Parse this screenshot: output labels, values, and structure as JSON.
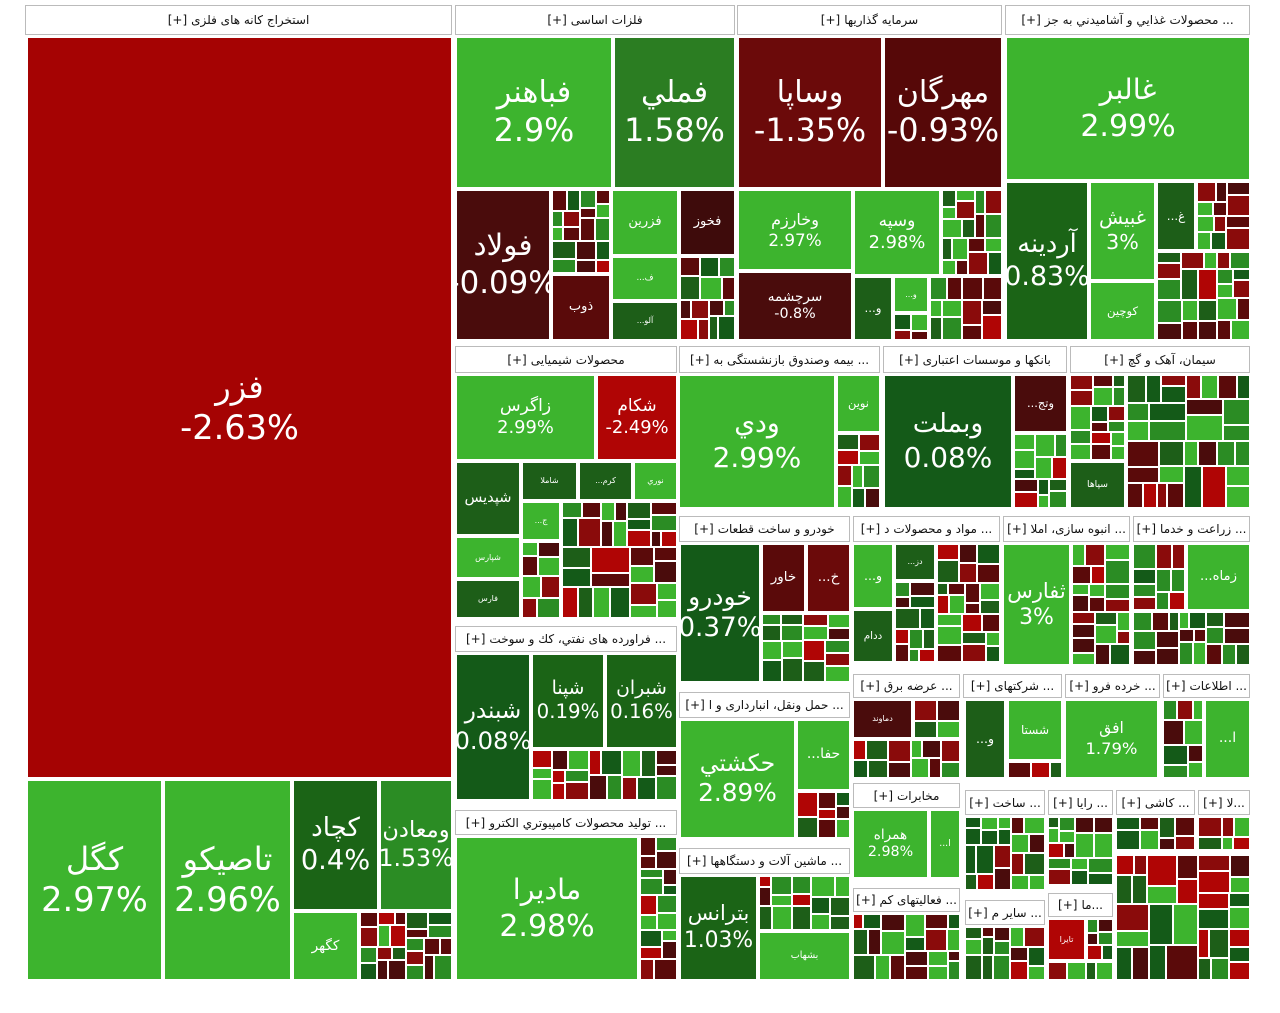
{
  "expand": "[+]",
  "sectors": [
    {
      "title": "استخراج کانه های فلزی",
      "tiles": [
        {
          "name": "فزر",
          "change": "-2.63%",
          "color": "#a50303"
        },
        {
          "name": "کگل",
          "change": "2.97%",
          "color": "#3db42e"
        },
        {
          "name": "تاصیکو",
          "change": "2.96%",
          "color": "#3db42e"
        },
        {
          "name": "کچاد",
          "change": "0.4%",
          "color": "#1b6416"
        },
        {
          "name": "ومعادن",
          "change": "1.53%",
          "color": "#2b8c24"
        },
        {
          "name": "کگهر",
          "color": "#3db42e"
        }
      ]
    },
    {
      "title": "فلزات اساسی",
      "tiles": [
        {
          "name": "فباهنر",
          "change": "2.9%",
          "color": "#3db42e"
        },
        {
          "name": "فملي",
          "change": "1.58%",
          "color": "#2b7d22"
        },
        {
          "name": "فولاد",
          "change": "-0.09%",
          "color": "#4a0c0c"
        },
        {
          "name": "ذوب",
          "color": "#5a0a0a"
        },
        {
          "name": "فزرین",
          "color": "#3db42e"
        },
        {
          "name": "فخوز",
          "color": "#3e0b0b"
        },
        {
          "name": "...ف",
          "color": "#3db42e"
        },
        {
          "name": "...آلو",
          "color": "#1d5e18"
        }
      ]
    },
    {
      "title": "سرمایه گذاریها",
      "tiles": [
        {
          "name": "وساپا",
          "change": "-1.35%",
          "color": "#6b0a0a"
        },
        {
          "name": "مهرگان",
          "change": "-0.93%",
          "color": "#560808"
        },
        {
          "name": "وخارزم",
          "change": "2.97%",
          "color": "#3db42e"
        },
        {
          "name": "وسپه",
          "change": "2.98%",
          "color": "#3db42e"
        },
        {
          "name": "سرچشمه",
          "change": "-0.8%",
          "color": "#4a0c0c"
        },
        {
          "name": "...و",
          "color": "#1d5e18"
        },
        {
          "name": "...و",
          "color": "#3db42e"
        }
      ]
    },
    {
      "title": "... محصولات غذايي و آشاميدني به جز",
      "tiles": [
        {
          "name": "غالبر",
          "change": "2.99%",
          "color": "#3db42e"
        },
        {
          "name": "آردینه",
          "change": "0.83%",
          "color": "#1b6416"
        },
        {
          "name": "کوچین",
          "color": "#3db42e"
        },
        {
          "name": "...غ",
          "color": "#1d5e18"
        },
        {
          "name": "غبیش",
          "change": "3%",
          "color": "#3db42e"
        }
      ]
    },
    {
      "title": "محصولات شیمیایی",
      "tiles": [
        {
          "name": "زاگرس",
          "change": "2.99%",
          "color": "#3db42e"
        },
        {
          "name": "شکام",
          "change": "-2.49%",
          "color": "#b00505"
        },
        {
          "name": "شپدیس",
          "color": "#1d5e18"
        },
        {
          "name": "شاملا",
          "color": "#1d5e18"
        },
        {
          "name": "...کرم",
          "color": "#1d5e18"
        },
        {
          "name": "نوري",
          "color": "#3db42e"
        },
        {
          "name": "...ج",
          "color": "#3db42e"
        },
        {
          "name": "شپارس",
          "color": "#3db42e"
        },
        {
          "name": "فارس",
          "color": "#1d5e18"
        }
      ]
    },
    {
      "title": "... بیمه وصندوق بازنشستگی به",
      "tiles": [
        {
          "name": "ودي",
          "change": "2.99%",
          "color": "#3db42e"
        },
        {
          "name": "نوین",
          "color": "#3db42e"
        }
      ]
    },
    {
      "title": "بانکها و موسسات اعتباری",
      "tiles": [
        {
          "name": "وبملت",
          "change": "0.08%",
          "color": "#145a18"
        },
        {
          "name": "...وتج",
          "color": "#4a0c0c"
        }
      ]
    },
    {
      "title": "سیمان، آهک و گچ",
      "tiles": [
        {
          "name": "سپاها",
          "color": "#1d5e18"
        }
      ]
    },
    {
      "title": "... فراورده های نفتي، کك و سوخت",
      "tiles": [
        {
          "name": "شبندر",
          "change": "0.08%",
          "color": "#145a18"
        },
        {
          "name": "شپنا",
          "change": "0.19%",
          "color": "#1b6416"
        },
        {
          "name": "شبران",
          "change": "0.16%",
          "color": "#1b6416"
        }
      ]
    },
    {
      "title": "... تولید محصولات کامپیوتري الکترو",
      "tiles": [
        {
          "name": "مادیرا",
          "change": "2.98%",
          "color": "#3db42e"
        }
      ]
    },
    {
      "title": "خودرو و ساخت قطعات",
      "tiles": [
        {
          "name": "خودرو",
          "change": "0.37%",
          "color": "#145a18"
        },
        {
          "name": "خاور",
          "color": "#5a0a0a"
        },
        {
          "name": "...خ",
          "color": "#6b0a0a"
        }
      ]
    },
    {
      "title": "... حمل ونقل، انبارداری و ا",
      "tiles": [
        {
          "name": "حکشتي",
          "change": "2.89%",
          "color": "#3db42e"
        },
        {
          "name": "...حفا",
          "color": "#3db42e"
        }
      ]
    },
    {
      "title": "... ماشین آلات و دستگاهها",
      "tiles": [
        {
          "name": "بترانس",
          "change": "1.03%",
          "color": "#1b6416"
        },
        {
          "name": "بشهاب",
          "color": "#3db42e"
        }
      ]
    },
    {
      "title": "... مواد و محصولات د",
      "tiles": [
        {
          "name": "...و",
          "color": "#3db42e"
        },
        {
          "name": "...دز",
          "color": "#1d5e18"
        },
        {
          "name": "ددام",
          "color": "#1d5e18"
        }
      ]
    },
    {
      "title": "... انبوه سازی، املا",
      "tiles": [
        {
          "name": "ثفارس",
          "change": "3%",
          "color": "#3db42e"
        }
      ]
    },
    {
      "title": "... زراعت و خدما",
      "tiles": [
        {
          "name": "...زماه",
          "color": "#3db42e"
        }
      ]
    },
    {
      "title": "... عرضه برق",
      "tiles": [
        {
          "name": "دماوند",
          "color": "#4a0c0c"
        }
      ]
    },
    {
      "title": "... شرکتهای",
      "tiles": [
        {
          "name": "...و",
          "color": "#1d5e18"
        },
        {
          "name": "شستا",
          "color": "#3db42e"
        }
      ]
    },
    {
      "title": "... خرده فرو",
      "tiles": [
        {
          "name": "افق",
          "change": "1.79%",
          "color": "#3db42e"
        }
      ]
    },
    {
      "title": "... اطلاعات",
      "tiles": [
        {
          "name": "...ا",
          "color": "#3db42e"
        }
      ]
    },
    {
      "title": "مخابرات",
      "tiles": [
        {
          "name": "همراه",
          "change": "2.98%",
          "color": "#3db42e"
        },
        {
          "name": "...ا",
          "color": "#3db42e"
        }
      ]
    },
    {
      "title": "... فعالیتهای کم",
      "tiles": []
    },
    {
      "title": "... ساخت",
      "tiles": []
    },
    {
      "title": "... رایا",
      "tiles": []
    },
    {
      "title": "... کاشی",
      "tiles": []
    },
    {
      "title": "...لا",
      "tiles": []
    },
    {
      "title": "... سایر م",
      "tiles": []
    },
    {
      "title": "...ما",
      "tiles": [
        {
          "name": "تایرا",
          "color": "#b00505"
        }
      ]
    }
  ]
}
